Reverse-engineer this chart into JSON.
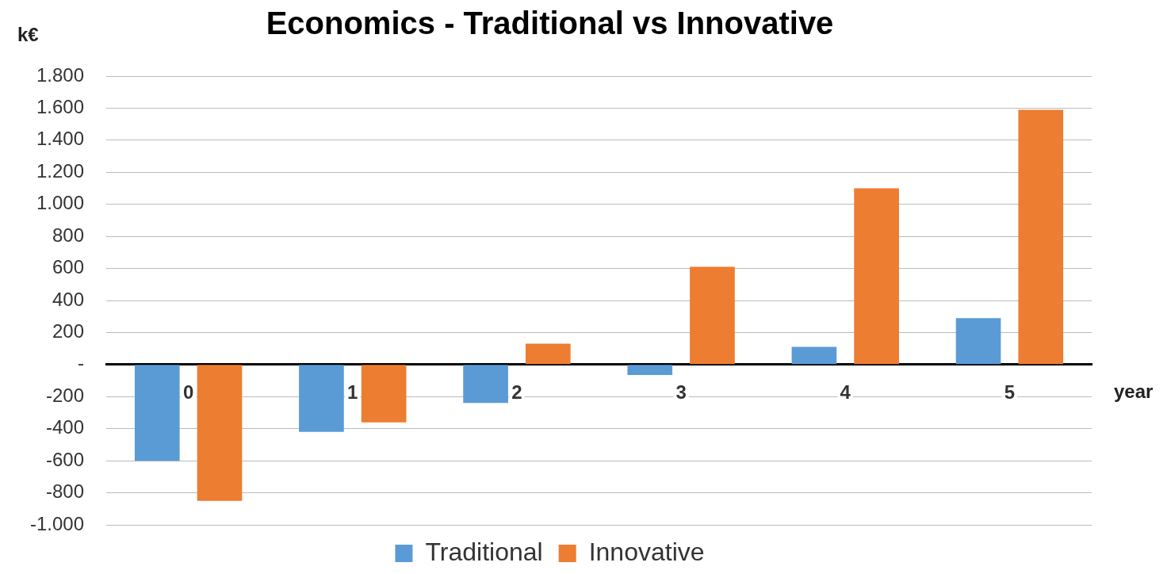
{
  "chart_data": {
    "type": "bar",
    "title": "Economics - Traditional vs Innovative",
    "ylabel": "k€",
    "xlabel": "year",
    "categories": [
      "0",
      "1",
      "2",
      "3",
      "4",
      "5"
    ],
    "series": [
      {
        "name": "Traditional",
        "color": "#5b9bd5",
        "values": [
          -600,
          -420,
          -240,
          -65,
          110,
          290
        ]
      },
      {
        "name": "Innovative",
        "color": "#ed7d31",
        "values": [
          -850,
          -360,
          130,
          610,
          1100,
          1590
        ]
      }
    ],
    "ylim": [
      -1000,
      1800
    ],
    "yticks": [
      {
        "value": -1000,
        "label": "-1.000"
      },
      {
        "value": -800,
        "label": "-800"
      },
      {
        "value": -600,
        "label": "-600"
      },
      {
        "value": -400,
        "label": "-400"
      },
      {
        "value": -200,
        "label": "-200"
      },
      {
        "value": 0,
        "label": "-"
      },
      {
        "value": 200,
        "label": "200"
      },
      {
        "value": 400,
        "label": "400"
      },
      {
        "value": 600,
        "label": "600"
      },
      {
        "value": 800,
        "label": "800"
      },
      {
        "value": 1000,
        "label": "1.000"
      },
      {
        "value": 1200,
        "label": "1.200"
      },
      {
        "value": 1400,
        "label": "1.400"
      },
      {
        "value": 1600,
        "label": "1.600"
      },
      {
        "value": 1800,
        "label": "1.800"
      }
    ],
    "grid": "y",
    "legend": "bottom"
  }
}
